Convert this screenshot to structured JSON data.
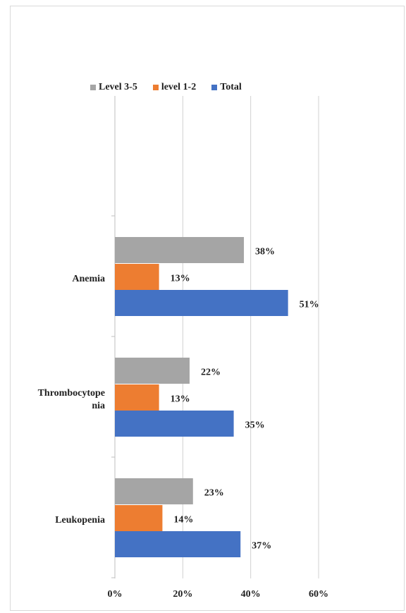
{
  "chart_data": {
    "type": "bar",
    "orientation": "horizontal",
    "categories": [
      "Anemia",
      "Thrombocytopenia",
      "Leukopenia"
    ],
    "category_display": [
      "Anemia",
      "Thrombocytope\nnia",
      "Leukopenia"
    ],
    "series": [
      {
        "name": "Level 3-5",
        "color": "#a5a5a5",
        "values": [
          38,
          22,
          23
        ],
        "labels": [
          "38%",
          "22%",
          "23%"
        ]
      },
      {
        "name": "level 1-2",
        "color": "#ed7d31",
        "values": [
          13,
          13,
          14
        ],
        "labels": [
          "13%",
          "13%",
          "14%"
        ]
      },
      {
        "name": "Total",
        "color": "#4472c4",
        "values": [
          51,
          35,
          37
        ],
        "labels": [
          "51%",
          "35%",
          "37%"
        ]
      }
    ],
    "xlim": [
      0,
      60
    ],
    "xticks": [
      "0%",
      "20%",
      "40%",
      "60%"
    ],
    "grid": true,
    "legend_position": "top",
    "title": "",
    "xlabel": "",
    "ylabel": ""
  }
}
